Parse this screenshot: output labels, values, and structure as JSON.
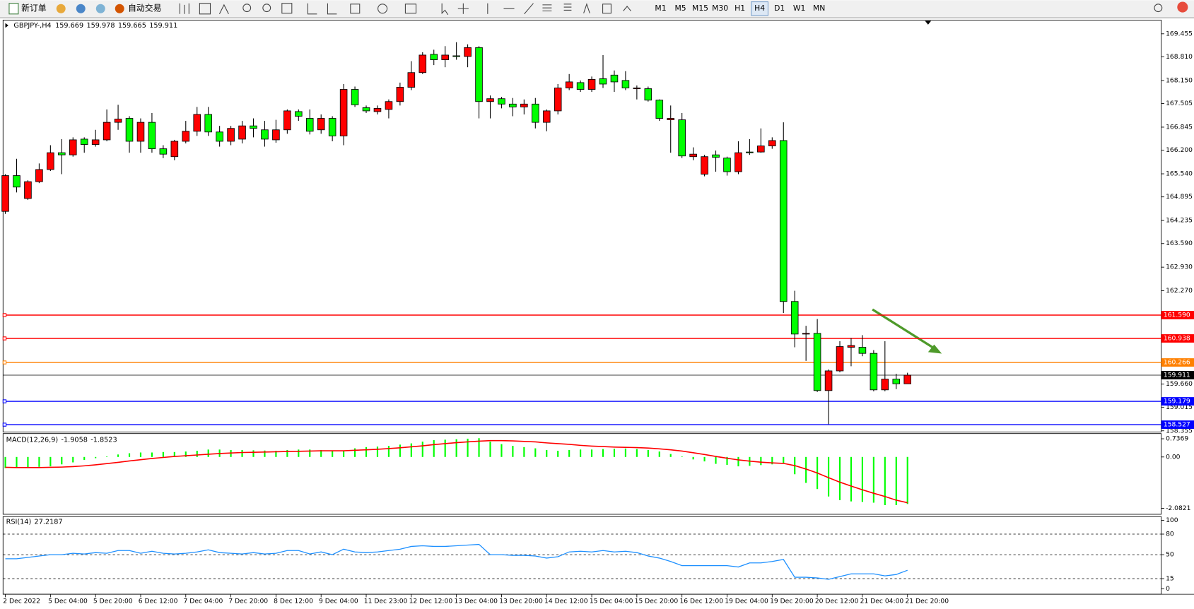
{
  "toolbar": {
    "new_order": "新订单",
    "auto_trading": "自动交易",
    "timeframes": [
      "M1",
      "M5",
      "M15",
      "M30",
      "H1",
      "H4",
      "D1",
      "W1",
      "MN"
    ],
    "active_timeframe": "H4"
  },
  "chart_data": [
    {
      "type": "candlestick",
      "symbol": "GBPJPY-,H4",
      "bull_color": "#ff0000",
      "bear_color": "#00ff00",
      "x": [
        "2 Dec 2022",
        null,
        null,
        null,
        "5 Dec 04:00",
        null,
        null,
        null,
        "5 Dec 20:00",
        null,
        null,
        null,
        "6 Dec 12:00",
        null,
        null,
        null,
        "7 Dec 04:00",
        null,
        null,
        null,
        "7 Dec 20:00",
        null,
        null,
        null,
        "8 Dec 12:00",
        null,
        null,
        null,
        "9 Dec 04:00",
        null,
        null,
        null,
        "11 Dec 23:00",
        null,
        null,
        null,
        "12 Dec 12:00",
        null,
        null,
        null,
        "13 Dec 04:00",
        null,
        null,
        null,
        "13 Dec 20:00",
        null,
        null,
        null,
        "14 Dec 12:00",
        null,
        null,
        null,
        "15 Dec 04:00",
        null,
        null,
        null,
        "15 Dec 20:00",
        null,
        null,
        null,
        "16 Dec 12:00",
        null,
        null,
        null,
        "19 Dec 04:00",
        null,
        null,
        null,
        "19 Dec 20:00",
        null,
        null,
        null,
        "20 Dec 12:00",
        null,
        null,
        null,
        "21 Dec 04:00",
        null,
        null,
        null,
        "21 Dec 20:00"
      ],
      "open": [
        164.49,
        165.49,
        164.85,
        165.32,
        165.66,
        166.13,
        166.07,
        166.51,
        166.36,
        166.49,
        166.98,
        167.09,
        166.45,
        166.98,
        166.24,
        166.02,
        166.45,
        166.73,
        167.2,
        166.71,
        166.45,
        166.51,
        166.88,
        166.77,
        166.49,
        166.77,
        167.28,
        167.09,
        166.77,
        167.09,
        166.6,
        167.9,
        167.39,
        167.28,
        167.34,
        167.56,
        167.96,
        168.37,
        168.88,
        168.73,
        168.84,
        168.82,
        169.07,
        167.56,
        167.64,
        167.49,
        167.41,
        167.49,
        166.98,
        167.3,
        167.94,
        168.09,
        167.9,
        168.2,
        168.3,
        168.15,
        167.92,
        167.92,
        167.6,
        167.05,
        167.05,
        166.02,
        165.53,
        166.07,
        165.98,
        165.6,
        166.15,
        166.15,
        166.32,
        166.47,
        161.97,
        161.06,
        161.08,
        159.48,
        160.03,
        160.69,
        160.69,
        160.52,
        159.5,
        159.8,
        159.669
      ],
      "high": [
        165.53,
        165.96,
        165.36,
        165.83,
        166.34,
        166.51,
        166.56,
        166.56,
        166.77,
        167.34,
        167.47,
        167.15,
        167.09,
        167.24,
        166.34,
        166.49,
        167.02,
        167.41,
        167.41,
        166.88,
        166.88,
        167.02,
        167.09,
        167.02,
        167.05,
        167.34,
        167.34,
        167.34,
        167.2,
        167.15,
        168.05,
        167.98,
        167.45,
        167.45,
        167.62,
        168.09,
        168.69,
        168.94,
        169.01,
        169.11,
        169.22,
        169.16,
        169.11,
        167.73,
        167.69,
        167.66,
        167.62,
        167.66,
        167.34,
        168.05,
        168.33,
        168.15,
        168.26,
        168.86,
        168.43,
        168.41,
        168.01,
        167.98,
        167.62,
        167.45,
        167.24,
        166.28,
        166.07,
        166.19,
        166.02,
        166.45,
        166.51,
        166.81,
        166.56,
        166.98,
        162.27,
        161.29,
        161.48,
        160.07,
        160.86,
        160.95,
        161.03,
        160.61,
        160.86,
        159.95,
        159.978
      ],
      "low": [
        164.42,
        165.02,
        164.81,
        165.28,
        165.62,
        165.53,
        166.02,
        166.13,
        166.3,
        166.45,
        166.77,
        166.13,
        166.13,
        166.13,
        165.98,
        165.92,
        166.39,
        166.6,
        166.6,
        166.3,
        166.34,
        166.39,
        166.56,
        166.3,
        166.41,
        166.66,
        167.02,
        166.64,
        166.66,
        166.45,
        166.34,
        167.41,
        167.24,
        167.2,
        167.09,
        167.45,
        167.88,
        168.33,
        168.58,
        168.52,
        168.73,
        168.52,
        167.09,
        167.09,
        167.37,
        167.15,
        167.2,
        166.81,
        166.73,
        167.2,
        167.88,
        167.83,
        167.83,
        167.94,
        167.83,
        167.88,
        167.62,
        167.56,
        167.02,
        166.13,
        165.98,
        165.92,
        165.47,
        165.6,
        165.49,
        165.53,
        166.07,
        166.13,
        166.24,
        161.65,
        160.69,
        160.31,
        159.44,
        158.54,
        159.99,
        160.16,
        160.44,
        159.46,
        159.46,
        159.52,
        159.665
      ],
      "close": [
        165.49,
        165.17,
        165.32,
        165.66,
        166.13,
        166.07,
        166.49,
        166.36,
        166.49,
        166.98,
        167.07,
        166.45,
        166.98,
        166.24,
        166.09,
        166.45,
        166.73,
        167.2,
        166.71,
        166.45,
        166.81,
        166.88,
        166.81,
        166.51,
        166.77,
        167.3,
        167.15,
        166.73,
        167.09,
        166.6,
        167.9,
        167.47,
        167.3,
        167.37,
        167.56,
        167.96,
        168.37,
        168.86,
        168.73,
        168.86,
        168.82,
        169.07,
        167.56,
        167.64,
        167.49,
        167.41,
        167.49,
        166.98,
        167.3,
        167.94,
        168.11,
        167.9,
        168.18,
        168.05,
        168.11,
        167.94,
        167.94,
        167.6,
        167.09,
        167.09,
        166.04,
        166.09,
        166.02,
        166.0,
        165.6,
        166.13,
        166.13,
        166.32,
        166.47,
        161.97,
        161.06,
        161.08,
        159.48,
        160.03,
        160.71,
        160.74,
        160.52,
        159.5,
        159.8,
        159.67,
        159.911
      ],
      "ylim": [
        158.32,
        169.817
      ],
      "yticks": [
        169.455,
        {
          "value": 168.81,
          "label": "168.810"
        },
        {
          "value": 168.15,
          "label": "168.150"
        },
        167.505,
        166.845,
        {
          "value": 166.2,
          "label": "166.200"
        },
        {
          "value": 165.54,
          "label": "165.540"
        },
        164.895,
        164.235,
        {
          "value": 163.59,
          "label": "163.590"
        },
        {
          "value": 162.93,
          "label": "162.930"
        },
        {
          "value": 162.27,
          "label": "162.270"
        },
        {
          "value": 159.66,
          "label": "159.660"
        },
        159.015,
        158.355
      ],
      "levels": [
        {
          "value": 161.59,
          "label": "161.590",
          "color": "#ff0000"
        },
        {
          "value": 160.938,
          "label": "160.938",
          "color": "#ff0000"
        },
        {
          "value": 160.266,
          "label": "160.266",
          "color": "#ff8000"
        },
        {
          "value": 159.179,
          "label": "159.179",
          "color": "#0000ff"
        },
        {
          "value": 158.527,
          "label": "158.527",
          "color": "#0000ff"
        }
      ]
    },
    {
      "type": "macd",
      "title": "MACD(12,26,9)",
      "ylim": [
        -2.322,
        0.947
      ],
      "yticks": [
        0.7369,
        {
          "value": 0,
          "label": "0.00"
        },
        -2.0821
      ],
      "series": [
        {
          "color": "#00ff00",
          "values": [
            -0.45,
            -0.45,
            -0.42,
            -0.4,
            -0.38,
            -0.3,
            -0.22,
            -0.12,
            -0.05,
            0.02,
            0.1,
            0.15,
            0.18,
            0.18,
            0.2,
            0.2,
            0.22,
            0.25,
            0.3,
            0.3,
            0.28,
            0.28,
            0.27,
            0.26,
            0.25,
            0.28,
            0.3,
            0.3,
            0.28,
            0.25,
            0.25,
            0.35,
            0.4,
            0.42,
            0.45,
            0.5,
            0.55,
            0.62,
            0.68,
            0.7,
            0.72,
            0.74,
            0.76,
            0.62,
            0.52,
            0.45,
            0.4,
            0.35,
            0.28,
            0.25,
            0.28,
            0.3,
            0.3,
            0.32,
            0.33,
            0.34,
            0.32,
            0.28,
            0.22,
            0.12,
            0.02,
            -0.1,
            -0.18,
            -0.28,
            -0.32,
            -0.38,
            -0.36,
            -0.33,
            -0.3,
            -0.28,
            -0.7,
            -1.05,
            -1.3,
            -1.6,
            -1.75,
            -1.8,
            -1.82,
            -1.85,
            -1.95,
            -1.95,
            -1.9058
          ]
        },
        {
          "color": "#ff0000",
          "values": [
            -0.42,
            -0.43,
            -0.43,
            -0.43,
            -0.42,
            -0.41,
            -0.39,
            -0.36,
            -0.32,
            -0.27,
            -0.22,
            -0.16,
            -0.11,
            -0.06,
            -0.02,
            0.02,
            0.05,
            0.08,
            0.11,
            0.14,
            0.16,
            0.18,
            0.19,
            0.2,
            0.21,
            0.22,
            0.23,
            0.24,
            0.25,
            0.25,
            0.25,
            0.27,
            0.29,
            0.31,
            0.34,
            0.37,
            0.41,
            0.45,
            0.5,
            0.54,
            0.58,
            0.61,
            0.64,
            0.66,
            0.66,
            0.65,
            0.63,
            0.61,
            0.57,
            0.54,
            0.51,
            0.47,
            0.44,
            0.42,
            0.4,
            0.39,
            0.38,
            0.36,
            0.33,
            0.29,
            0.24,
            0.17,
            0.1,
            0.02,
            -0.05,
            -0.12,
            -0.17,
            -0.21,
            -0.24,
            -0.26,
            -0.35,
            -0.49,
            -0.65,
            -0.84,
            -1.02,
            -1.18,
            -1.33,
            -1.47,
            -1.6,
            -1.75,
            -1.8523
          ]
        }
      ]
    },
    {
      "type": "rsi",
      "title": "RSI(14)",
      "color": "#1e90ff",
      "ylim": [
        -7.8,
        105.6
      ],
      "yticks": [
        100,
        80,
        50,
        15,
        0
      ],
      "levels": [
        80,
        50,
        15
      ],
      "values": [
        44,
        44,
        46,
        48,
        50,
        50,
        52,
        51,
        53,
        52,
        56,
        56,
        52,
        55,
        52,
        51,
        52,
        54,
        57,
        53,
        52,
        51,
        53,
        51,
        52,
        56,
        56,
        51,
        54,
        50,
        58,
        54,
        53,
        54,
        56,
        58,
        62,
        63,
        62,
        62,
        63,
        64,
        65,
        50,
        50,
        49,
        49,
        48,
        45,
        47,
        54,
        55,
        54,
        56,
        54,
        55,
        53,
        48,
        45,
        40,
        34,
        34,
        34,
        34,
        34,
        32,
        38,
        38,
        40,
        43,
        17,
        17,
        16,
        14,
        18,
        22,
        22,
        22,
        19,
        21,
        27.2187
      ]
    }
  ]
}
